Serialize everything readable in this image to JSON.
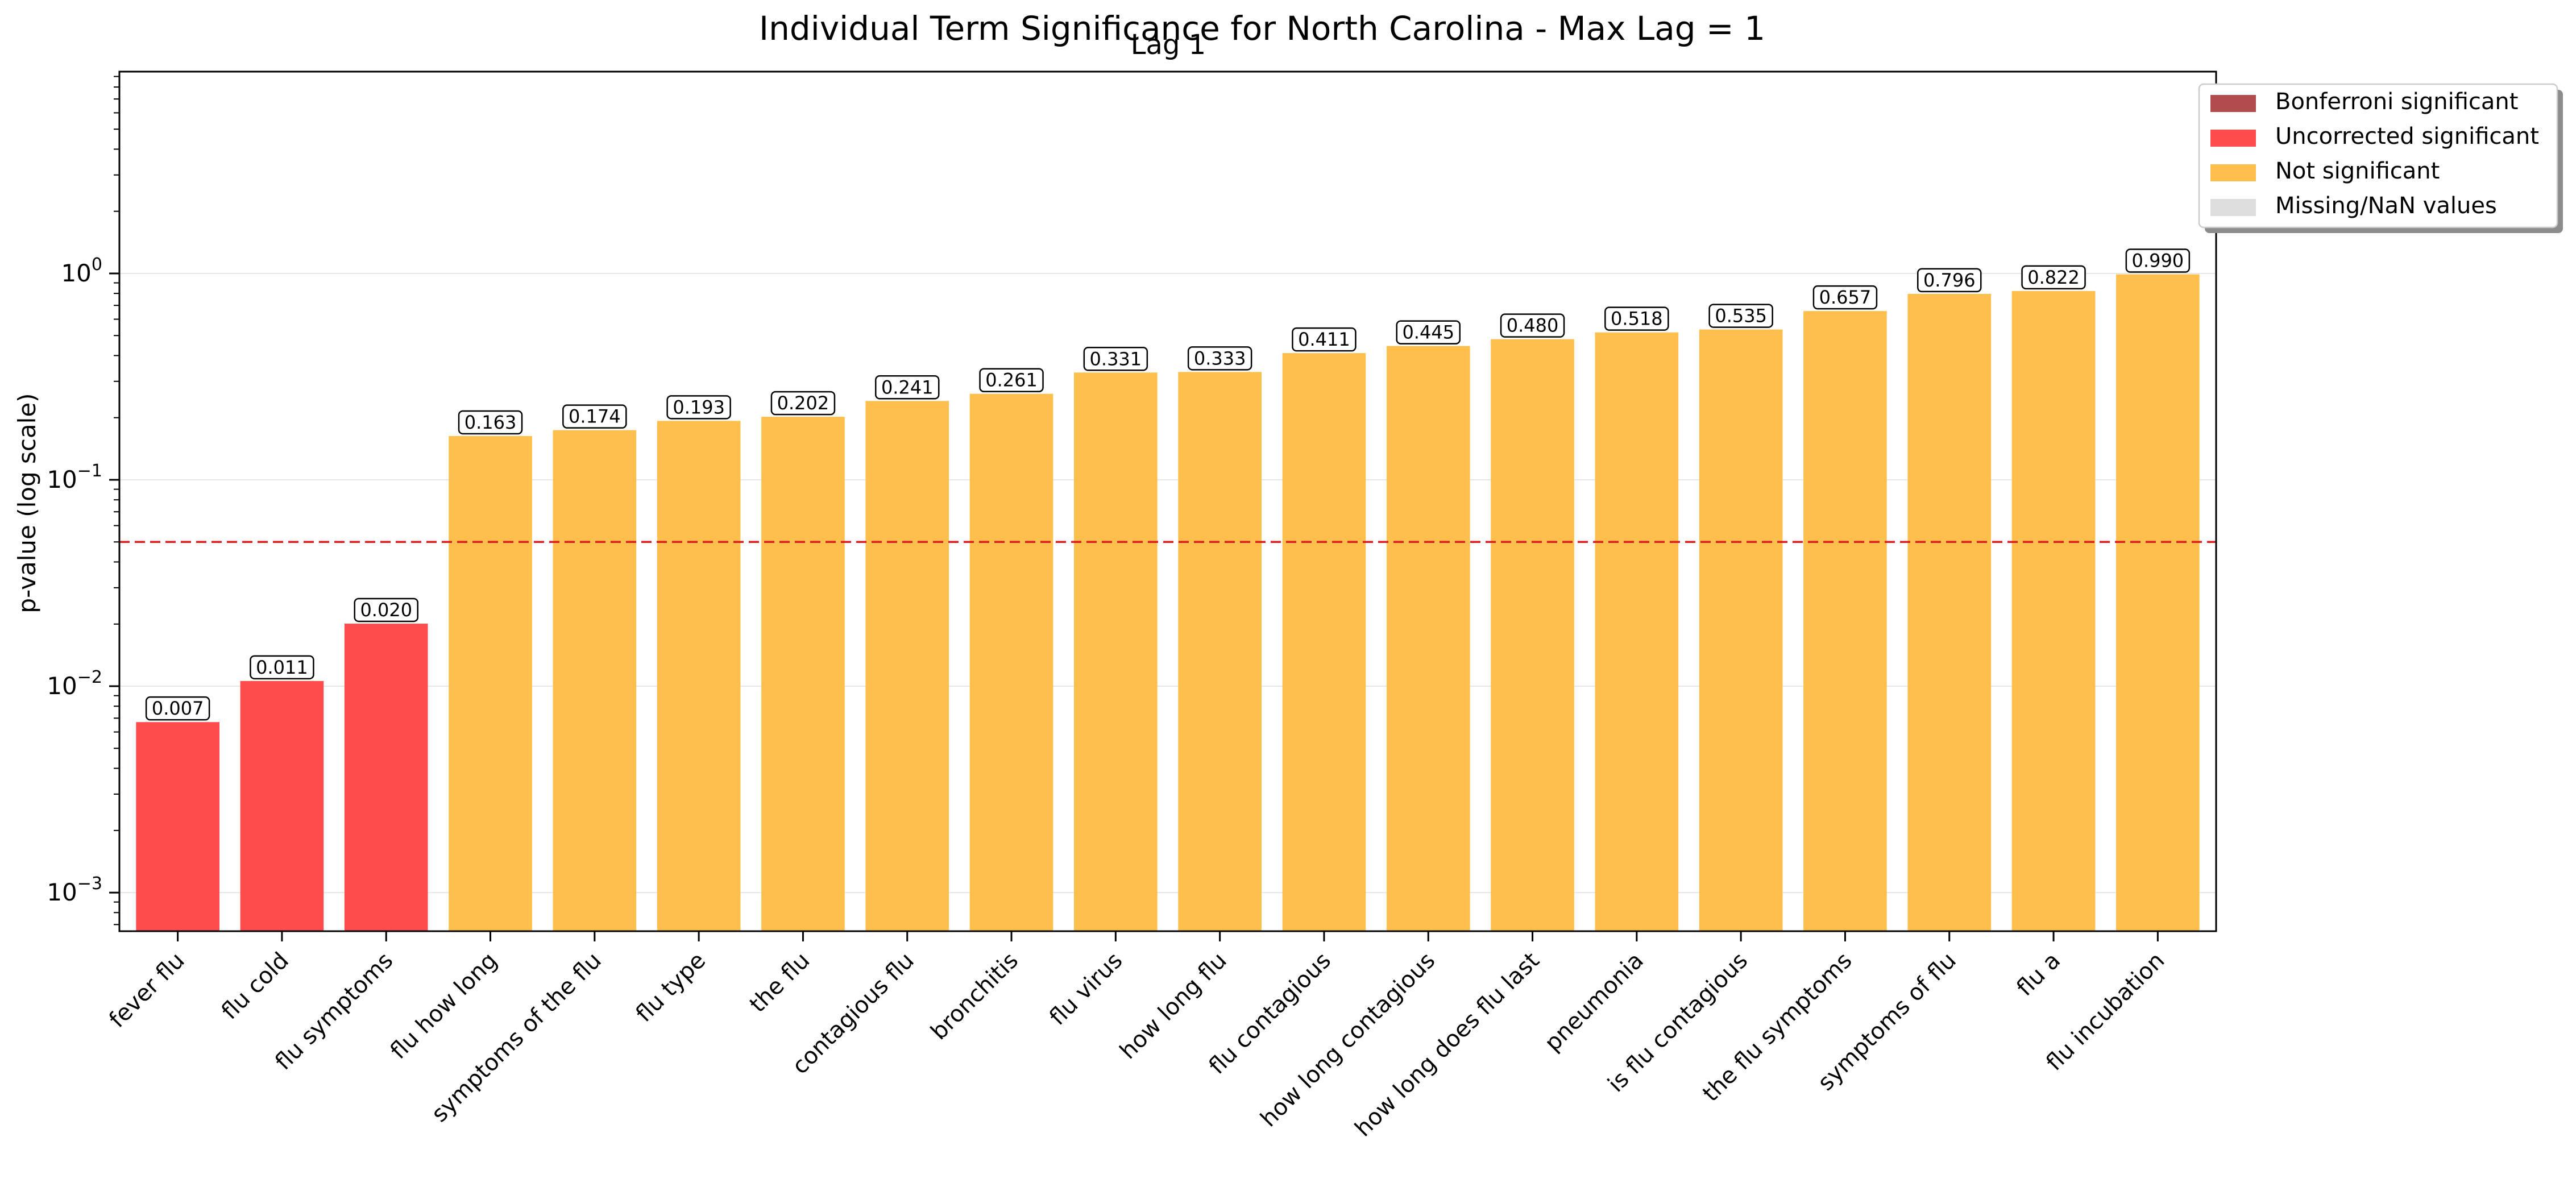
{
  "chart_data": {
    "type": "bar",
    "title": "Individual Term Significance for North Carolina - Max Lag = 1",
    "subtitle": "Lag 1",
    "xlabel": "",
    "ylabel": "p-value (log scale)",
    "yscale": "log",
    "ylim": [
      0.00065,
      9.5
    ],
    "yticks": [
      {
        "value": 0.001,
        "base": "10",
        "exp": "−3"
      },
      {
        "value": 0.01,
        "base": "10",
        "exp": "−2"
      },
      {
        "value": 0.1,
        "base": "10",
        "exp": "−1"
      },
      {
        "value": 1,
        "base": "10",
        "exp": "0"
      }
    ],
    "grid": true,
    "threshold": 0.05,
    "legend_position": "top-right",
    "legend": [
      {
        "label": "Bonferroni significant",
        "color": "#b24c4c"
      },
      {
        "label": "Uncorrected significant",
        "color": "#ff4c4c"
      },
      {
        "label": "Not significant",
        "color": "#ffbf4c"
      },
      {
        "label": "Missing/NaN values",
        "color": "#dedede"
      }
    ],
    "categories": [
      "fever flu",
      "flu cold",
      "flu symptoms",
      "flu how long",
      "symptoms of the flu",
      "flu type",
      "the flu",
      "contagious flu",
      "bronchitis",
      "flu virus",
      "how long flu",
      "flu contagious",
      "how long contagious",
      "how long does flu last",
      "pneumonia",
      "is flu contagious",
      "the flu symptoms",
      "symptoms of flu",
      "flu a",
      "flu incubation"
    ],
    "values": [
      0.0067,
      0.0106,
      0.0201,
      0.163,
      0.174,
      0.193,
      0.202,
      0.241,
      0.261,
      0.331,
      0.333,
      0.411,
      0.445,
      0.48,
      0.518,
      0.535,
      0.657,
      0.796,
      0.822,
      0.99
    ],
    "labels": [
      "0.007",
      "0.011",
      "0.020",
      "0.163",
      "0.174",
      "0.193",
      "0.202",
      "0.241",
      "0.261",
      "0.331",
      "0.333",
      "0.411",
      "0.445",
      "0.480",
      "0.518",
      "0.535",
      "0.657",
      "0.796",
      "0.822",
      "0.990"
    ],
    "status": [
      "uncorrected",
      "uncorrected",
      "uncorrected",
      "not",
      "not",
      "not",
      "not",
      "not",
      "not",
      "not",
      "not",
      "not",
      "not",
      "not",
      "not",
      "not",
      "not",
      "not",
      "not",
      "not"
    ],
    "colors": {
      "uncorrected": "#ff4c4c",
      "not": "#ffbf4c",
      "threshold": "#e31a1c",
      "axis": "#000000",
      "grid": "#e6e6e6"
    }
  }
}
